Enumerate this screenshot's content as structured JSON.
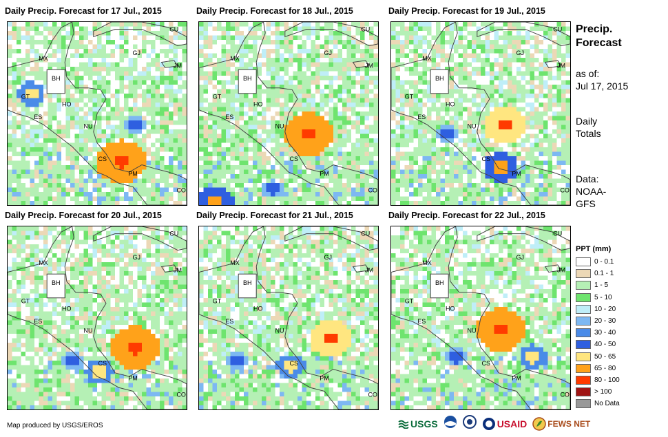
{
  "panels": [
    {
      "title": "Daily Precip. Forecast for 17 Jul., 2015",
      "seed": 17,
      "hotspots": [
        [
          0.62,
          0.75,
          7
        ],
        [
          0.12,
          0.38,
          4
        ],
        [
          0.7,
          0.55,
          3
        ]
      ]
    },
    {
      "title": "Daily Precip. Forecast for 18 Jul., 2015",
      "seed": 18,
      "hotspots": [
        [
          0.6,
          0.6,
          7
        ],
        [
          0.08,
          0.97,
          5
        ],
        [
          0.4,
          0.9,
          3
        ]
      ]
    },
    {
      "title": "Daily Precip. Forecast for 19 Jul., 2015",
      "seed": 19,
      "hotspots": [
        [
          0.62,
          0.55,
          6
        ],
        [
          0.6,
          0.78,
          5
        ],
        [
          0.3,
          0.6,
          3
        ]
      ]
    },
    {
      "title": "Daily Precip. Forecast for 20 Jul., 2015",
      "seed": 20,
      "hotspots": [
        [
          0.7,
          0.65,
          7
        ],
        [
          0.5,
          0.78,
          4
        ],
        [
          0.35,
          0.72,
          3
        ]
      ]
    },
    {
      "title": "Daily Precip. Forecast for 21 Jul., 2015",
      "seed": 21,
      "hotspots": [
        [
          0.72,
          0.6,
          6
        ],
        [
          0.5,
          0.75,
          4
        ],
        [
          0.2,
          0.72,
          3
        ]
      ]
    },
    {
      "title": "Daily Precip. Forecast for 22 Jul., 2015",
      "seed": 22,
      "hotspots": [
        [
          0.6,
          0.55,
          7
        ],
        [
          0.78,
          0.7,
          4
        ],
        [
          0.35,
          0.7,
          3
        ]
      ]
    }
  ],
  "country_labels": {
    "cu": "CU",
    "mx": "MX",
    "gj": "GJ",
    "jm": "JM",
    "bh": "BH",
    "gt": "GT",
    "ho": "HO",
    "es": "ES",
    "nu": "NU",
    "cs": "CS",
    "pm": "PM",
    "co": "CO"
  },
  "info": {
    "title_line1": "Precip.",
    "title_line2": "Forecast",
    "asof_label": "as of:",
    "asof_date": "Jul 17, 2015",
    "totals_line1": "Daily",
    "totals_line2": "Totals",
    "data_label": "Data:",
    "data_source_line1": "NOAA-",
    "data_source_line2": "GFS"
  },
  "legend": {
    "title": "PPT (mm)",
    "items": [
      {
        "label": "0 - 0.1",
        "color": "#ffffff"
      },
      {
        "label": "0.1 - 1",
        "color": "#ecd8b6"
      },
      {
        "label": "1 - 5",
        "color": "#b5f0b5"
      },
      {
        "label": "5 - 10",
        "color": "#6ee46e"
      },
      {
        "label": "10 - 20",
        "color": "#bfeef8"
      },
      {
        "label": "20 - 30",
        "color": "#7db8f2"
      },
      {
        "label": "30 - 40",
        "color": "#4a8be8"
      },
      {
        "label": "40 - 50",
        "color": "#2f5fe0"
      },
      {
        "label": "50 - 65",
        "color": "#ffe680"
      },
      {
        "label": "65 - 80",
        "color": "#ffa21a"
      },
      {
        "label": "80 - 100",
        "color": "#ff3b00"
      },
      {
        "label": "> 100",
        "color": "#a01414"
      },
      {
        "label": "No Data",
        "color": "#999999"
      }
    ]
  },
  "footer": {
    "credit": "Map produced by USGS/EROS",
    "logo_usgs": "USGS",
    "logo_usaid": "USAID",
    "logo_fews": "FEWS NET"
  }
}
